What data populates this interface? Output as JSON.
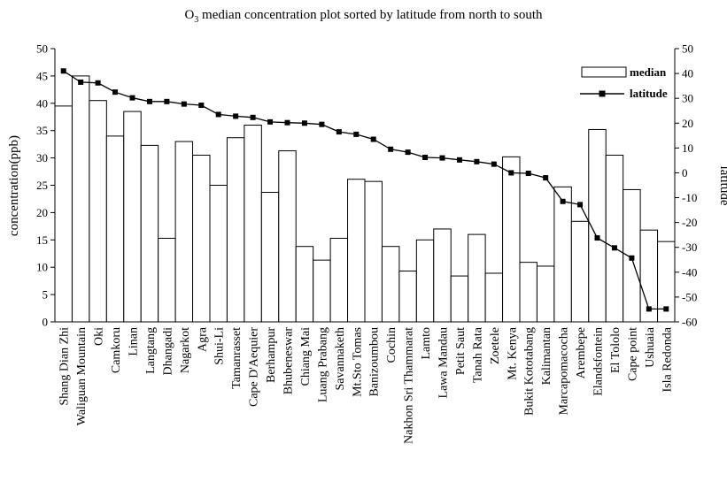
{
  "chart_data": {
    "type": "bar",
    "title_pre": "O",
    "title_sub": "3",
    "title_post": " median concentration plot sorted by latitude from north to south",
    "ylabel": "concentration(ppb)",
    "y2label": "latitude",
    "ylim": [
      0,
      50
    ],
    "y2lim": [
      -60,
      50
    ],
    "yticks": [
      0,
      5,
      10,
      15,
      20,
      25,
      30,
      35,
      40,
      45,
      50
    ],
    "y2ticks": [
      -60,
      -50,
      -40,
      -30,
      -20,
      -10,
      0,
      10,
      20,
      30,
      40,
      50
    ],
    "legend_position": "top-right",
    "categories": [
      "Shang Dian Zhi",
      "Waliguan Mountain",
      "Oki",
      "Camkoru",
      "Linan",
      "Langtang",
      "Dhangadi",
      "Nagarkot",
      "Agra",
      "Shui-Li",
      "Tamanrasset",
      "Cape D'Aequier",
      "Berhampur",
      "Bhubeneswar",
      "Chiang Mai",
      "Luang Prabang",
      "Savannaketh",
      "Mt.Sto Tomas",
      "Banizoumbou",
      "Cochin",
      "Nakhon Sri Thammarat",
      "Lamto",
      "Lawa Mandau",
      "Petit Saut",
      "Tanah Rata",
      "Zoetele",
      "Mt. Kenya",
      "Bukit Kototabang",
      "Kalimantan",
      "Marcapomacocha",
      "Arembepe",
      "Elandsfontein",
      "El Tololo",
      "Cape point",
      "Ushuaia",
      "Isla Redonda"
    ],
    "series": [
      {
        "name": "median",
        "kind": "bar",
        "axis": "left",
        "color": "#ffffff",
        "values": [
          39.5,
          45,
          40.5,
          34,
          38.5,
          32.3,
          15.3,
          33,
          30.5,
          25,
          33.7,
          36,
          23.7,
          31.3,
          13.8,
          11.3,
          15.3,
          26.1,
          25.7,
          13.8,
          9.3,
          15,
          17,
          8.4,
          16,
          8.9,
          30.2,
          10.9,
          10.2,
          24.7,
          18.4,
          35.2,
          30.5,
          24.2,
          16.8,
          14.7
        ]
      },
      {
        "name": "latitude",
        "kind": "line",
        "axis": "right",
        "color": "#000000",
        "values": [
          41,
          36.5,
          36.2,
          32.5,
          30.2,
          28.7,
          28.7,
          27.7,
          27.2,
          23.5,
          22.8,
          22.3,
          20.5,
          20.2,
          20,
          19.5,
          16.5,
          15.5,
          13.5,
          9.5,
          8.3,
          6.2,
          6,
          5.2,
          4.5,
          3.5,
          0,
          -0.2,
          -2,
          -11.5,
          -12.8,
          -26.2,
          -30.2,
          -34.3,
          -54.8,
          -54.8
        ]
      }
    ]
  }
}
